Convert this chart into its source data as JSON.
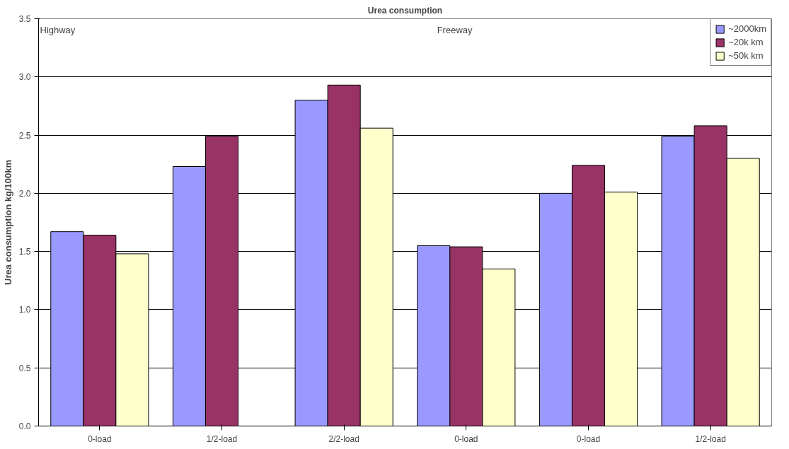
{
  "chart_data": {
    "type": "bar",
    "title": "Urea consumption",
    "ylabel": "Urea consumption kg/100km",
    "categories": [
      "0-load",
      "1/2-load",
      "2/2-load",
      "0-load",
      "0-load",
      "1/2-load"
    ],
    "series": [
      {
        "name": "~2000km",
        "color": "#9999ff",
        "values": [
          1.67,
          2.23,
          2.8,
          1.55,
          2.0,
          2.49
        ]
      },
      {
        "name": "~20k km",
        "color": "#993366",
        "values": [
          1.64,
          2.49,
          2.93,
          1.54,
          2.24,
          2.58
        ]
      },
      {
        "name": "~50k km",
        "color": "#ffffcc",
        "values": [
          1.48,
          null,
          2.56,
          1.35,
          2.01,
          2.3
        ]
      }
    ],
    "ylim": [
      0,
      3.5
    ],
    "yticks": [
      {
        "value": 0,
        "label": "0.0"
      },
      {
        "value": 0.5,
        "label": "0.5"
      },
      {
        "value": 1,
        "label": "1.0"
      },
      {
        "value": 1.5,
        "label": "1.5"
      },
      {
        "value": 2,
        "label": "2.0"
      },
      {
        "value": 2.5,
        "label": "2.5"
      },
      {
        "value": 3,
        "label": "3.0"
      },
      {
        "value": 3.5,
        "label": "3.5"
      }
    ],
    "annotations": [
      "Highway",
      "Freeway"
    ],
    "grid": "y",
    "legend": "top right"
  }
}
